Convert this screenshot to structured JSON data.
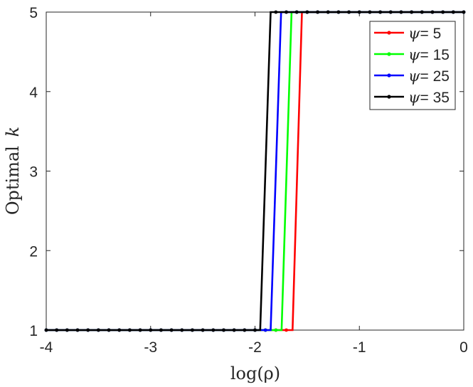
{
  "chart_data": {
    "type": "line",
    "title": "",
    "xlabel": "log(ρ)",
    "ylabel_text": "Optimal",
    "ylabel_var": "k",
    "xlim": [
      -4,
      0
    ],
    "ylim": [
      1,
      5
    ],
    "xticks": [
      -4,
      -3,
      -2,
      -1,
      0
    ],
    "xtick_labels": [
      "-4",
      "-3",
      "-2",
      "-1",
      "0"
    ],
    "yticks": [
      1,
      2,
      3,
      4,
      5
    ],
    "ytick_labels": [
      "1",
      "2",
      "3",
      "4",
      "5"
    ],
    "grid": false,
    "legend_position": "top-right",
    "legend_symbol": "ψ",
    "series": [
      {
        "name": "ψ= 5",
        "legend_value": "= 5",
        "color": "#ff0000",
        "switch_from": -1.64,
        "switch_to": -1.55
      },
      {
        "name": "ψ= 15",
        "legend_value": "= 15",
        "color": "#00ff00",
        "switch_from": -1.745,
        "switch_to": -1.65
      },
      {
        "name": "ψ= 25",
        "legend_value": "= 25",
        "color": "#0000ff",
        "switch_from": -1.85,
        "switch_to": -1.75
      },
      {
        "name": "ψ= 35",
        "legend_value": "= 35",
        "color": "#000000",
        "switch_from": -1.95,
        "switch_to": -1.85
      }
    ],
    "x_grid": [
      -4.0,
      -3.9,
      -3.8,
      -3.7,
      -3.6,
      -3.5,
      -3.4,
      -3.3,
      -3.2,
      -3.1,
      -3.0,
      -2.9,
      -2.8,
      -2.7,
      -2.6,
      -2.5,
      -2.4,
      -2.3,
      -2.2,
      -2.1,
      -2.0,
      -1.9,
      -1.8,
      -1.7,
      -1.6,
      -1.5,
      -1.4,
      -1.3,
      -1.2,
      -1.1,
      -1.0,
      -0.9,
      -0.8,
      -0.7,
      -0.6,
      -0.5,
      -0.4,
      -0.3,
      -0.2,
      -0.1,
      0.0
    ]
  }
}
